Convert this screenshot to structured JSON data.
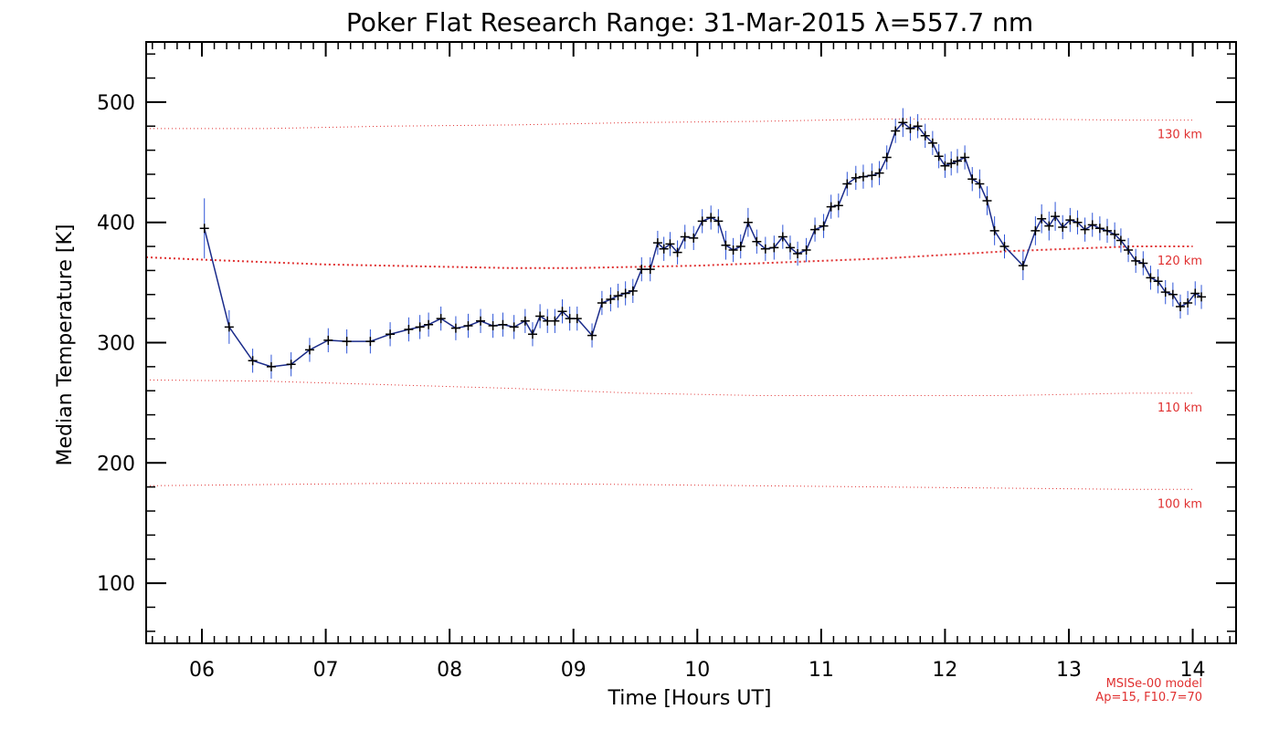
{
  "chart_data": {
    "type": "line",
    "title": "Poker Flat Research Range: 31-Mar-2015 λ=557.7 nm",
    "xlabel": "Time [Hours UT]",
    "ylabel": "Median Temperature [K]",
    "xlim": [
      5.55,
      14.35
    ],
    "ylim": [
      50,
      550
    ],
    "x_ticks": [
      "06",
      "07",
      "08",
      "09",
      "10",
      "11",
      "12",
      "13",
      "14"
    ],
    "y_ticks": [
      "100",
      "200",
      "300",
      "400",
      "500"
    ],
    "note_lines": [
      "MSISe-00 model",
      "Ap=15, F10.7=70"
    ],
    "series": [
      {
        "color": "#1a2b8a",
        "x": [
          6.02,
          6.22,
          6.41,
          6.56,
          6.72,
          6.87,
          7.02,
          7.17,
          7.36,
          7.52,
          7.67,
          7.76,
          7.83,
          7.93,
          8.05,
          8.15,
          8.25,
          8.35,
          8.43,
          8.52,
          8.61,
          8.67,
          8.73,
          8.79,
          8.85,
          8.91,
          8.97,
          9.03,
          9.15,
          9.23,
          9.3,
          9.36,
          9.42,
          9.48,
          9.55,
          9.62,
          9.68,
          9.73,
          9.78,
          9.84,
          9.9,
          9.97,
          10.04,
          10.11,
          10.17,
          10.23,
          10.29,
          10.35,
          10.41,
          10.48,
          10.55,
          10.62,
          10.69,
          10.75,
          10.81,
          10.88,
          10.95,
          11.02,
          11.08,
          11.14,
          11.21,
          11.28,
          11.34,
          11.41,
          11.47,
          11.53,
          11.6,
          11.66,
          11.72,
          11.78,
          11.84,
          11.9,
          11.95,
          12.0,
          12.05,
          12.1,
          12.16,
          12.22,
          12.28,
          12.34,
          12.4,
          12.48,
          12.63,
          12.73,
          12.78,
          12.84,
          12.89,
          12.95,
          13.01,
          13.07,
          13.13,
          13.19,
          13.25,
          13.31,
          13.37,
          13.42,
          13.48,
          13.54,
          13.6,
          13.66,
          13.72,
          13.78,
          13.84,
          13.9,
          13.96,
          14.02,
          14.07
        ],
        "y": [
          395,
          313,
          285,
          280,
          282,
          294,
          302,
          301,
          301,
          307,
          311,
          313,
          315,
          320,
          312,
          314,
          318,
          314,
          315,
          313,
          318,
          307,
          322,
          318,
          318,
          326,
          320,
          320,
          306,
          333,
          336,
          339,
          341,
          343,
          361,
          361,
          383,
          378,
          382,
          375,
          388,
          387,
          401,
          404,
          401,
          381,
          377,
          380,
          400,
          384,
          378,
          379,
          388,
          379,
          374,
          377,
          394,
          397,
          413,
          414,
          432,
          437,
          438,
          439,
          441,
          454,
          476,
          483,
          478,
          480,
          472,
          466,
          455,
          447,
          449,
          451,
          454,
          436,
          432,
          418,
          393,
          380,
          364,
          393,
          403,
          397,
          405,
          396,
          402,
          400,
          394,
          398,
          395,
          393,
          390,
          385,
          377,
          368,
          366,
          354,
          351,
          342,
          340,
          330,
          333,
          341,
          338
        ],
        "err": [
          25,
          14,
          10,
          10,
          10,
          10,
          10,
          10,
          10,
          10,
          10,
          10,
          10,
          10,
          10,
          10,
          10,
          10,
          10,
          10,
          10,
          10,
          10,
          10,
          10,
          10,
          10,
          10,
          10,
          10,
          10,
          10,
          10,
          10,
          10,
          10,
          10,
          10,
          10,
          10,
          10,
          10,
          10,
          10,
          10,
          12,
          10,
          10,
          12,
          10,
          10,
          10,
          10,
          10,
          10,
          10,
          10,
          10,
          10,
          10,
          10,
          10,
          10,
          10,
          10,
          10,
          10,
          12,
          10,
          10,
          10,
          10,
          10,
          10,
          10,
          10,
          10,
          10,
          12,
          12,
          12,
          10,
          12,
          12,
          12,
          12,
          12,
          10,
          10,
          10,
          10,
          10,
          10,
          10,
          10,
          10,
          10,
          10,
          10,
          10,
          10,
          10,
          10,
          10,
          10,
          10,
          10
        ]
      }
    ],
    "model_lines": [
      {
        "label": "130 km",
        "color": "#e03030",
        "x": [
          5.55,
          6.5,
          7.5,
          8.5,
          9.5,
          10.5,
          11.5,
          12.5,
          13.5,
          14.0
        ],
        "y": [
          478,
          478,
          480,
          481,
          483,
          484,
          486,
          486,
          485,
          485
        ]
      },
      {
        "label": "120 km",
        "color": "#e03030",
        "x": [
          5.55,
          6.0,
          6.5,
          7.0,
          7.5,
          8.0,
          8.5,
          9.0,
          9.5,
          10.0,
          10.5,
          11.0,
          11.5,
          12.0,
          12.5,
          13.0,
          13.5,
          14.0
        ],
        "y": [
          371,
          369,
          367,
          365,
          364,
          363,
          362,
          362,
          363,
          364,
          366,
          368,
          370,
          373,
          376,
          378,
          380,
          380
        ]
      },
      {
        "label": "110 km",
        "color": "#e03030",
        "x": [
          5.55,
          6.5,
          7.5,
          8.5,
          9.5,
          10.5,
          11.5,
          12.5,
          13.5,
          14.0
        ],
        "y": [
          269,
          268,
          265,
          262,
          258,
          256,
          256,
          256,
          258,
          258
        ]
      },
      {
        "label": "100 km",
        "color": "#e03030",
        "x": [
          5.55,
          6.5,
          7.5,
          8.5,
          9.5,
          10.5,
          11.5,
          12.5,
          13.5,
          14.0
        ],
        "y": [
          181,
          182,
          183,
          183,
          182,
          181,
          180,
          179,
          178,
          178
        ]
      }
    ]
  }
}
